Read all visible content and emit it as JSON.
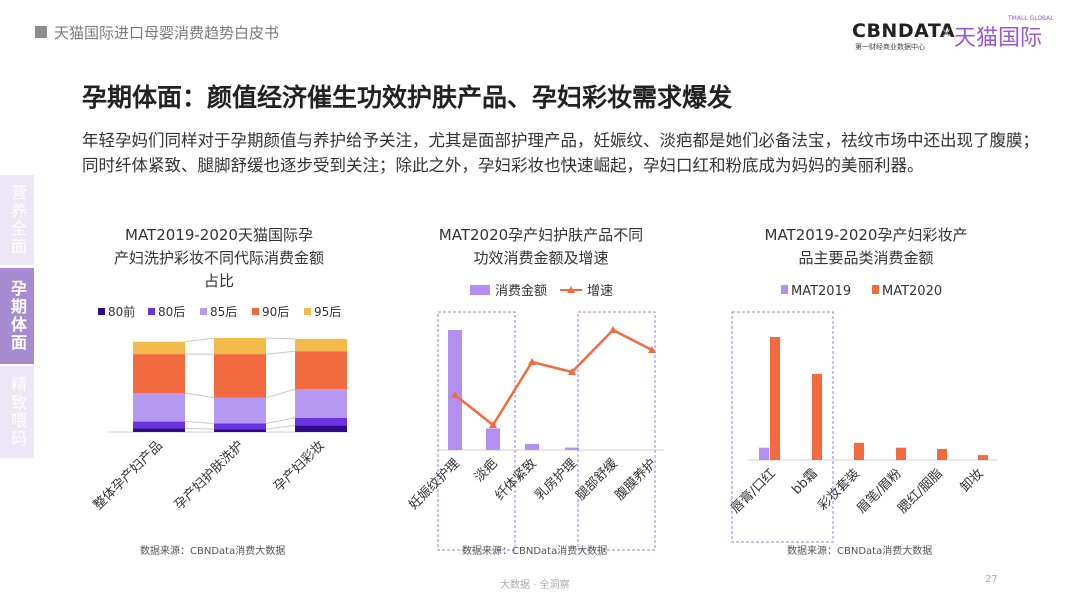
{
  "header": {
    "doc_title": "天猫国际进口母婴消费趋势白皮书"
  },
  "logos": {
    "cbn": "CBNDATA",
    "cbn_sub": "第一财经商业数据中心",
    "times": "×",
    "tmall": "天猫国际",
    "tmall_sub": "TMALL GLOBAL"
  },
  "sidebar": {
    "items": [
      {
        "label": "营养全面"
      },
      {
        "label": "孕期体面"
      },
      {
        "label": "精致喂码"
      }
    ]
  },
  "main_title": "孕期体面：颜值经济催生功效护肤产品、孕妇彩妆需求爆发",
  "intro": "年轻孕妈们同样对于孕期颜值与养护给予关注，尤其是面部护理产品，妊娠纹、淡疤都是她们必备法宝，祛纹市场中还出现了腹膜；同时纤体紧致、腿脚舒缓也逐步受到关注；除此之外，孕妇彩妆也快速崛起，孕妇口红和粉底成为妈妈的美丽利器。",
  "source": "数据来源：CBNData消费大数据",
  "footer": "大数据 · 全洞察",
  "page_number": "27",
  "colors": {
    "c80q": "#2c0a8a",
    "c80h": "#6a32e0",
    "c85h": "#b49af0",
    "c90h": "#f26a3d",
    "c95h": "#f2bb4b",
    "purple": "#b28ff0",
    "orange": "#f26a3d",
    "dash": "#9a7fd6"
  },
  "chart_data": [
    {
      "type": "bar",
      "stacked": true,
      "title": "MAT2019-2020天猫国际孕产妇洗护彩妆不同代际消费金额占比",
      "title_lines": [
        "MAT2019-2020天猫国际孕",
        "产妇洗护彩妆不同代际消费金额",
        "占比"
      ],
      "categories": [
        "整体孕产妇产品",
        "孕产妇护肤洗护",
        "孕产妇彩妆"
      ],
      "series": [
        {
          "name": "80前",
          "values": [
            0.04,
            0.03,
            0.07
          ]
        },
        {
          "name": "80后",
          "values": [
            0.07,
            0.06,
            0.08
          ]
        },
        {
          "name": "85后",
          "values": [
            0.3,
            0.27,
            0.3
          ]
        },
        {
          "name": "90后",
          "values": [
            0.41,
            0.46,
            0.4
          ]
        },
        {
          "name": "95后",
          "values": [
            0.13,
            0.17,
            0.13
          ]
        }
      ]
    },
    {
      "type": "bar+line",
      "title": "MAT2020孕产妇护肤产品不同功效消费金额及增速",
      "title_lines": [
        "MAT2020孕产妇护肤产品不同",
        "功效消费金额及增速"
      ],
      "categories": [
        "妊娠纹护理",
        "淡疤",
        "纤体紧致",
        "乳房护理",
        "腿部舒缓",
        "腹膜养护"
      ],
      "series": [
        {
          "name": "消费金额",
          "kind": "bar",
          "values": [
            100,
            18,
            5,
            2,
            0,
            0
          ]
        },
        {
          "name": "增速",
          "kind": "line",
          "values": [
            35,
            5,
            68,
            58,
            100,
            80
          ]
        }
      ],
      "y_labels_shown": false
    },
    {
      "type": "bar",
      "title": "MAT2019-2020孕产妇彩妆产品主要品类消费金额",
      "title_lines": [
        "MAT2019-2020孕产妇彩妆产",
        "品主要品类消费金额"
      ],
      "categories": [
        "唇膏/口红",
        "bb霜",
        "彩妆套装",
        "眉笔/眉粉",
        "腮红/胭脂",
        "卸妆"
      ],
      "series": [
        {
          "name": "MAT2019",
          "values": [
            10,
            0,
            0,
            0,
            0,
            0
          ]
        },
        {
          "name": "MAT2020",
          "values": [
            100,
            70,
            14,
            10,
            9,
            4
          ]
        }
      ],
      "y_labels_shown": false
    }
  ]
}
